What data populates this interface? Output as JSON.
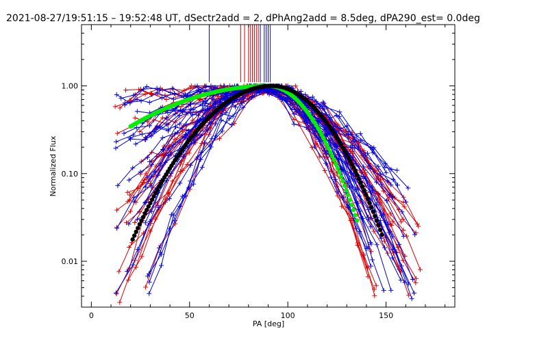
{
  "chart_data": {
    "type": "line",
    "title": "2021-08-27/19:51:15 – 19:52:48 UT, dSectr2add = 2, dPhAng2add = 8.5deg, dPA290_est=  0.0deg",
    "xlabel": "PA [deg]",
    "ylabel": "Normalized Flux",
    "xlim": [
      -5,
      185
    ],
    "ylim": [
      0.003,
      5.0
    ],
    "yscale": "log",
    "x_ticks": [
      0,
      50,
      100,
      150
    ],
    "x_tick_labels": [
      "0",
      "50",
      "100",
      "150"
    ],
    "y_ticks": [
      0.01,
      0.1,
      1.0
    ],
    "y_tick_labels": [
      "0.01",
      "0.10",
      "1.00"
    ],
    "grid": false,
    "colors": {
      "red_series": "#dd0000",
      "blue_series": "#0000dd",
      "green_fit": "#00ee00",
      "black_fit": "#000000",
      "frame": "#000000"
    },
    "fits": [
      {
        "color": "green",
        "peak_pa": 90,
        "left_end_pa": 20,
        "right_end_pa": 136,
        "left_sigma": 48,
        "right_sigma": 17
      },
      {
        "color": "black",
        "peak_pa": 92,
        "left_end_pa": 21,
        "right_end_pa": 148,
        "left_sigma": 25,
        "right_sigma": 20
      }
    ],
    "markers": {
      "blue_pa": [
        60,
        86,
        88,
        89,
        90,
        91
      ],
      "red_pa": [
        76,
        78,
        80,
        81,
        82,
        83,
        84,
        85
      ]
    },
    "curve_shape": {
      "red_count": 26,
      "blue_count": 30,
      "peak_pa_range": [
        82,
        94
      ],
      "left_end_pa_range": [
        12,
        30
      ],
      "right_end_pa_range": [
        140,
        168
      ],
      "left_end_flux_range": [
        0.003,
        0.8
      ],
      "right_end_flux_range": [
        0.003,
        0.1
      ]
    }
  }
}
